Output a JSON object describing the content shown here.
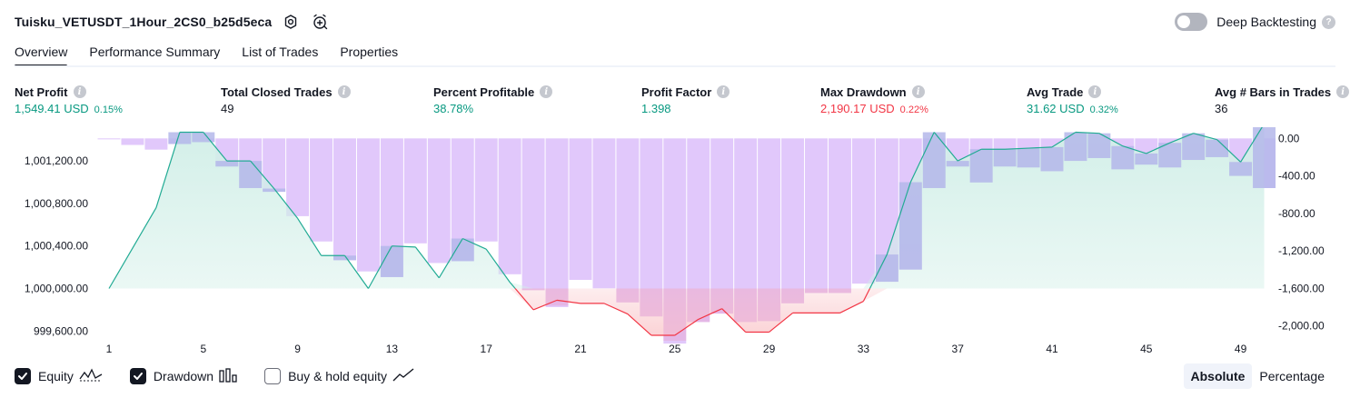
{
  "header": {
    "strategy_title": "Tuisku_VETUSDT_1Hour_2CS0_b25d5eca",
    "settings_icon": "gear-icon",
    "add_alert_icon": "alarm-plus-icon",
    "deep_backtesting_label": "Deep Backtesting",
    "deep_backtesting_enabled": false,
    "help_icon": "?"
  },
  "tabs": [
    {
      "label": "Overview",
      "active": true
    },
    {
      "label": "Performance Summary",
      "active": false
    },
    {
      "label": "List of Trades",
      "active": false
    },
    {
      "label": "Properties",
      "active": false
    }
  ],
  "metrics": [
    {
      "label": "Net Profit",
      "value": "1,549.41 USD",
      "pct": "0.15%",
      "color": "#089981"
    },
    {
      "label": "Total Closed Trades",
      "value": "49",
      "pct": "",
      "color": "#131722"
    },
    {
      "label": "Percent Profitable",
      "value": "38.78%",
      "pct": "",
      "color": "#089981"
    },
    {
      "label": "Profit Factor",
      "value": "1.398",
      "pct": "",
      "color": "#089981"
    },
    {
      "label": "Max Drawdown",
      "value": "2,190.17 USD",
      "pct": "0.22%",
      "color": "#f23645"
    },
    {
      "label": "Avg Trade",
      "value": "31.62 USD",
      "pct": "0.32%",
      "color": "#089981"
    },
    {
      "label": "Avg # Bars in Trades",
      "value": "36",
      "pct": "",
      "color": "#131722"
    }
  ],
  "legend": {
    "equity": {
      "label": "Equity",
      "checked": true
    },
    "drawdown": {
      "label": "Drawdown",
      "checked": true
    },
    "buy_hold": {
      "label": "Buy & hold equity",
      "checked": false
    }
  },
  "view_mode": {
    "absolute_label": "Absolute",
    "percentage_label": "Percentage",
    "active": "Absolute"
  },
  "colors": {
    "equity_line": "#22ab94",
    "equity_fill": "#d2efe8",
    "loss_line": "#f23645",
    "loss_fill": "#fbd3d6",
    "drawdown_bar": "#e1c8fb",
    "drawdown_bar_dark": "#b4b7ea"
  },
  "chart_data": {
    "type": "area",
    "x_ticks": [
      "1",
      "5",
      "9",
      "13",
      "17",
      "21",
      "25",
      "29",
      "33",
      "37",
      "41",
      "45",
      "49"
    ],
    "left_axis": {
      "ticks": [
        "1,001,200.00",
        "1,000,800.00",
        "1,000,400.00",
        "1,000,000.00",
        "999,600.00"
      ],
      "tick_values": [
        1001200,
        1000800,
        1000400,
        1000000,
        999600
      ],
      "ylim": [
        999500,
        1001500
      ]
    },
    "right_axis": {
      "ticks": [
        "0.00",
        "-400.00",
        "-800.00",
        "-1,200.00",
        "-1,600.00",
        "-2,000.00"
      ],
      "tick_values": [
        0,
        -400,
        -800,
        -1200,
        -1600,
        -2000
      ],
      "ylim": [
        -2150,
        100
      ]
    },
    "series": [
      {
        "name": "Equity",
        "x": [
          1,
          2,
          3,
          4,
          5,
          6,
          7,
          8,
          9,
          10,
          11,
          12,
          13,
          14,
          15,
          16,
          17,
          18,
          19,
          20,
          21,
          22,
          23,
          24,
          25,
          26,
          27,
          28,
          29,
          30,
          31,
          32,
          33,
          34,
          35,
          36,
          37,
          38,
          39,
          40,
          41,
          42,
          43,
          44,
          45,
          46,
          47,
          48,
          49,
          50
        ],
        "values": [
          1000000,
          1000380,
          1000760,
          1001470,
          1001470,
          1001200,
          1001200,
          1000940,
          1000660,
          1000310,
          1000310,
          1000000,
          1000400,
          1000390,
          1000100,
          1000470,
          1000370,
          1000060,
          999800,
          999890,
          999860,
          999860,
          999760,
          999560,
          999560,
          999710,
          999810,
          999590,
          999590,
          999770,
          999770,
          999770,
          999880,
          1000320,
          1001000,
          1001470,
          1001200,
          1001310,
          1001310,
          1001320,
          1001330,
          1001470,
          1001460,
          1001340,
          1001270,
          1001370,
          1001460,
          1001400,
          1001190,
          1001550
        ]
      },
      {
        "name": "Drawdown",
        "x": [
          1,
          2,
          3,
          4,
          5,
          6,
          7,
          8,
          9,
          10,
          11,
          12,
          13,
          14,
          15,
          16,
          17,
          18,
          19,
          20,
          21,
          22,
          23,
          24,
          25,
          26,
          27,
          28,
          29,
          30,
          31,
          32,
          33,
          34,
          35,
          36,
          37,
          38,
          39,
          40,
          41,
          42,
          43,
          44,
          45,
          46,
          47,
          48,
          49,
          50
        ],
        "values": [
          -10,
          -70,
          -120,
          -60,
          -40,
          -300,
          -530,
          -570,
          -830,
          -1100,
          -1300,
          -1420,
          -1480,
          -1120,
          -1330,
          -1310,
          -1100,
          -1450,
          -1620,
          -1800,
          -1510,
          -1600,
          -1750,
          -1900,
          -2190,
          -1960,
          -1870,
          -1960,
          -1950,
          -1760,
          -1650,
          -1650,
          -1550,
          -1530,
          -1400,
          -530,
          -300,
          -470,
          -300,
          -310,
          -350,
          -240,
          -210,
          -330,
          -280,
          -310,
          -230,
          -200,
          -400,
          -530
        ]
      }
    ],
    "xlabel": "",
    "ylabel": "",
    "grid": false
  }
}
